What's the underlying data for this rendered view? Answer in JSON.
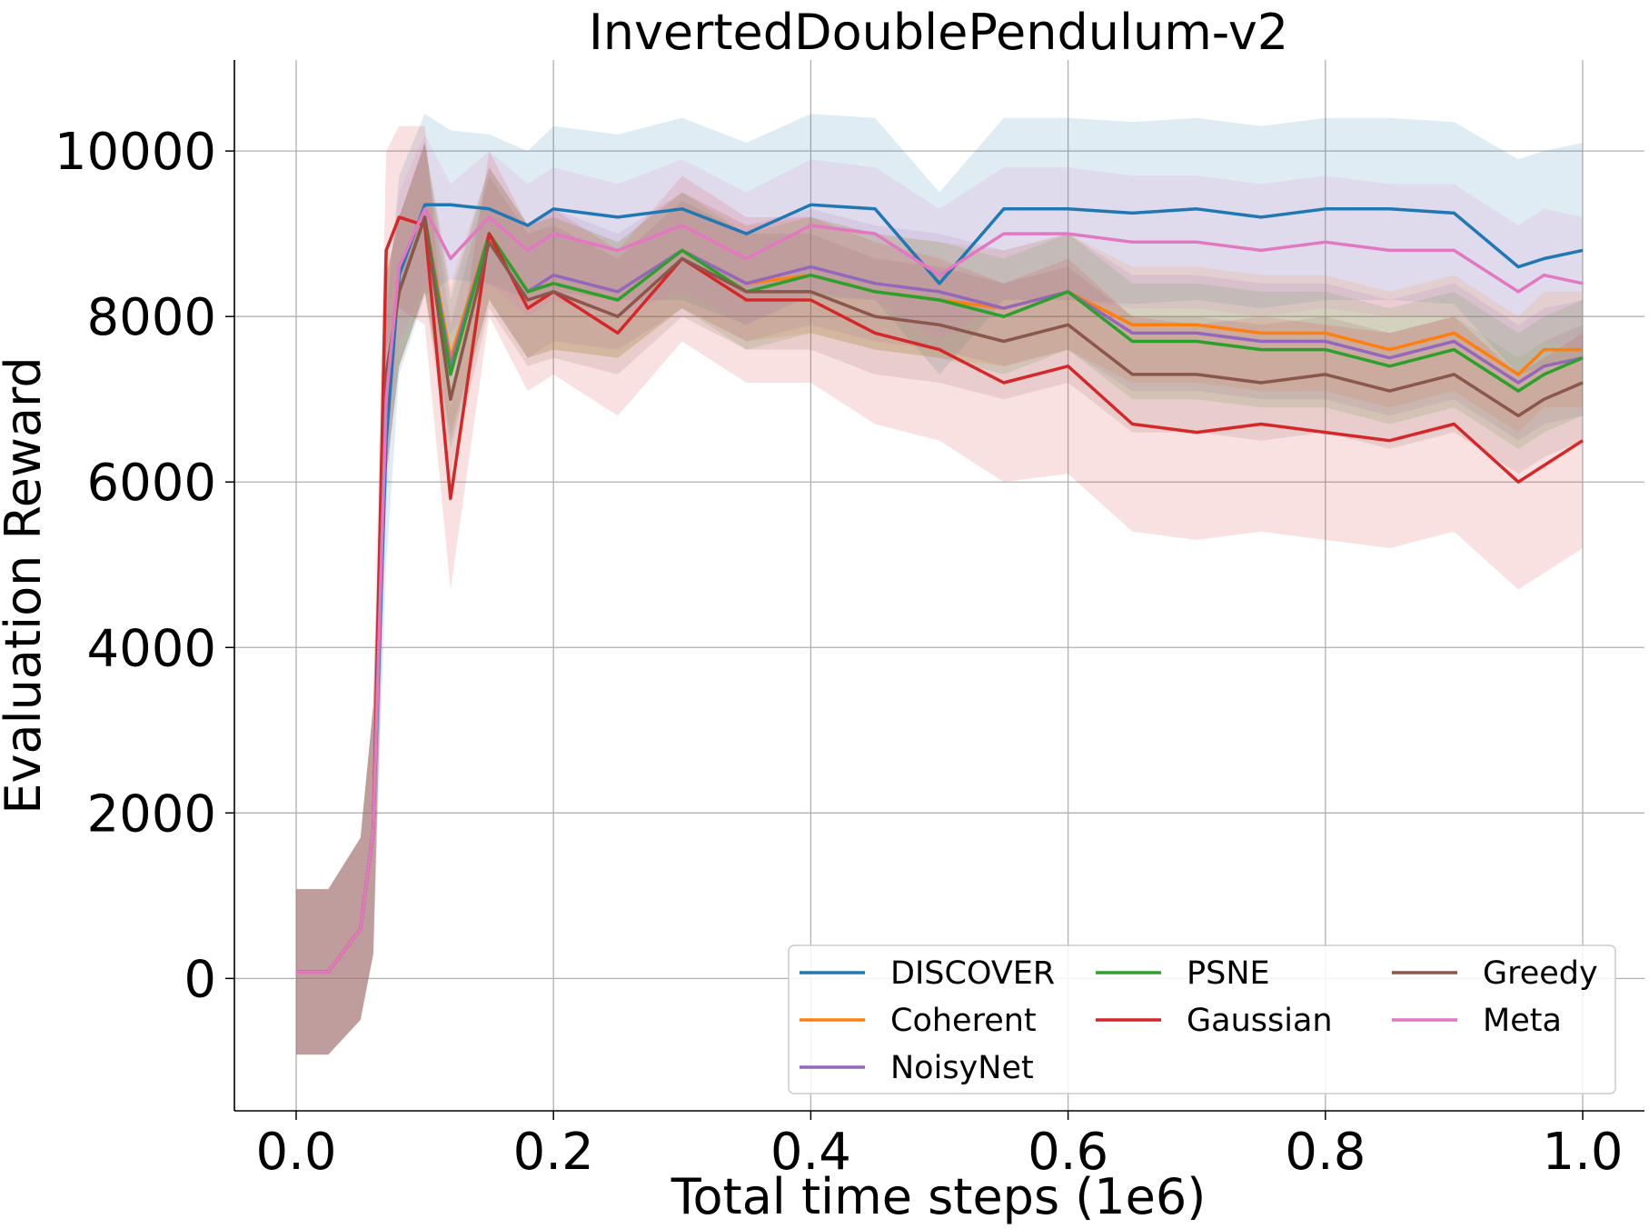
{
  "chart_data": {
    "type": "line",
    "title": "InvertedDoublePendulum-v2",
    "xlabel": "Total time steps (1e6)",
    "ylabel": "Evaluation Reward",
    "xlim": [
      -0.048,
      1.048
    ],
    "ylim": [
      -1600,
      11100
    ],
    "x_ticks": [
      0.0,
      0.2,
      0.4,
      0.6,
      0.8,
      1.0
    ],
    "x_tick_labels": [
      "0.0",
      "0.2",
      "0.4",
      "0.6",
      "0.8",
      "1.0"
    ],
    "y_ticks": [
      0,
      2000,
      4000,
      6000,
      8000,
      10000
    ],
    "y_tick_labels": [
      "0",
      "2000",
      "4000",
      "6000",
      "8000",
      "10000"
    ],
    "grid": true,
    "legend_position": "bottom-right",
    "legend_columns": 3,
    "x": [
      0.0,
      0.025,
      0.05,
      0.06,
      0.07,
      0.08,
      0.1,
      0.12,
      0.15,
      0.18,
      0.2,
      0.25,
      0.3,
      0.35,
      0.4,
      0.45,
      0.5,
      0.55,
      0.6,
      0.65,
      0.7,
      0.75,
      0.8,
      0.85,
      0.9,
      0.95,
      0.97,
      1.0
    ],
    "series": [
      {
        "name": "DISCOVER",
        "color": "#1f77b4",
        "values": [
          80,
          80,
          600,
          1800,
          6500,
          8500,
          9350,
          9350,
          9300,
          9100,
          9300,
          9200,
          9300,
          9000,
          9350,
          9300,
          8400,
          9300,
          9300,
          9250,
          9300,
          9200,
          9300,
          9300,
          9250,
          8600,
          8700,
          8800
        ],
        "band": [
          1000,
          1000,
          1100,
          1500,
          1500,
          1200,
          1100,
          900,
          900,
          900,
          1000,
          1000,
          1100,
          1100,
          1100,
          1100,
          1100,
          1100,
          1100,
          1100,
          1100,
          1100,
          1100,
          1100,
          1100,
          1300,
          1300,
          1300
        ]
      },
      {
        "name": "Coherent",
        "color": "#ff7f0e",
        "values": [
          80,
          80,
          600,
          1800,
          7300,
          8300,
          9200,
          7500,
          9000,
          8300,
          8400,
          8200,
          8800,
          8400,
          8500,
          8300,
          8200,
          8100,
          8300,
          7900,
          7900,
          7800,
          7800,
          7600,
          7800,
          7300,
          7600,
          7600
        ],
        "band": [
          1000,
          1000,
          1100,
          1500,
          1200,
          900,
          900,
          900,
          800,
          800,
          800,
          700,
          700,
          700,
          700,
          700,
          700,
          700,
          700,
          700,
          700,
          700,
          700,
          700,
          700,
          700,
          700,
          700
        ]
      },
      {
        "name": "NoisyNet",
        "color": "#9467bd",
        "values": [
          80,
          80,
          600,
          1800,
          7300,
          8300,
          9200,
          7400,
          9000,
          8300,
          8500,
          8300,
          8800,
          8400,
          8600,
          8400,
          8300,
          8100,
          8300,
          7800,
          7800,
          7700,
          7700,
          7500,
          7700,
          7200,
          7400,
          7500
        ],
        "band": [
          1000,
          1000,
          1100,
          1500,
          1200,
          900,
          900,
          900,
          800,
          800,
          800,
          700,
          700,
          700,
          700,
          700,
          700,
          700,
          700,
          700,
          700,
          700,
          700,
          700,
          700,
          700,
          700,
          700
        ]
      },
      {
        "name": "PSNE",
        "color": "#2ca02c",
        "values": [
          80,
          80,
          600,
          1800,
          7300,
          8300,
          9200,
          7300,
          9000,
          8300,
          8400,
          8200,
          8800,
          8300,
          8500,
          8300,
          8200,
          8000,
          8300,
          7700,
          7700,
          7600,
          7600,
          7400,
          7600,
          7100,
          7300,
          7500
        ],
        "band": [
          1000,
          1000,
          1100,
          1500,
          1200,
          900,
          900,
          900,
          800,
          800,
          800,
          700,
          700,
          700,
          700,
          700,
          700,
          700,
          700,
          700,
          700,
          700,
          700,
          700,
          700,
          700,
          700,
          700
        ]
      },
      {
        "name": "Gaussian",
        "color": "#d62728",
        "values": [
          80,
          80,
          600,
          1800,
          8800,
          9200,
          9100,
          5800,
          9000,
          8100,
          8300,
          7800,
          8700,
          8200,
          8200,
          7800,
          7600,
          7200,
          7400,
          6700,
          6600,
          6700,
          6600,
          6500,
          6700,
          6000,
          6200,
          6500
        ],
        "band": [
          1000,
          1000,
          1100,
          1500,
          1200,
          1100,
          1200,
          1100,
          1000,
          1000,
          1000,
          1000,
          1000,
          1000,
          1000,
          1100,
          1100,
          1200,
          1300,
          1300,
          1300,
          1300,
          1300,
          1300,
          1300,
          1300,
          1300,
          1300
        ]
      },
      {
        "name": "Greedy",
        "color": "#8c564b",
        "values": [
          80,
          80,
          600,
          1800,
          7300,
          8300,
          9200,
          7000,
          8900,
          8200,
          8300,
          8000,
          8700,
          8300,
          8300,
          8000,
          7900,
          7700,
          7900,
          7300,
          7300,
          7200,
          7300,
          7100,
          7300,
          6800,
          7000,
          7200
        ],
        "band": [
          1000,
          1000,
          1100,
          1500,
          1200,
          900,
          900,
          900,
          800,
          800,
          800,
          700,
          700,
          700,
          700,
          700,
          700,
          700,
          700,
          700,
          700,
          700,
          700,
          700,
          700,
          700,
          700,
          700
        ]
      },
      {
        "name": "Meta",
        "color": "#e377c2",
        "values": [
          80,
          80,
          600,
          1800,
          7000,
          8600,
          9300,
          8700,
          9200,
          8800,
          9000,
          8800,
          9100,
          8700,
          9100,
          9000,
          8500,
          9000,
          9000,
          8900,
          8900,
          8800,
          8900,
          8800,
          8800,
          8300,
          8500,
          8400
        ],
        "band": [
          1000,
          1000,
          1100,
          1500,
          1200,
          900,
          900,
          900,
          800,
          800,
          800,
          800,
          800,
          800,
          800,
          800,
          800,
          800,
          800,
          800,
          800,
          800,
          800,
          800,
          800,
          800,
          800,
          800
        ]
      }
    ]
  }
}
